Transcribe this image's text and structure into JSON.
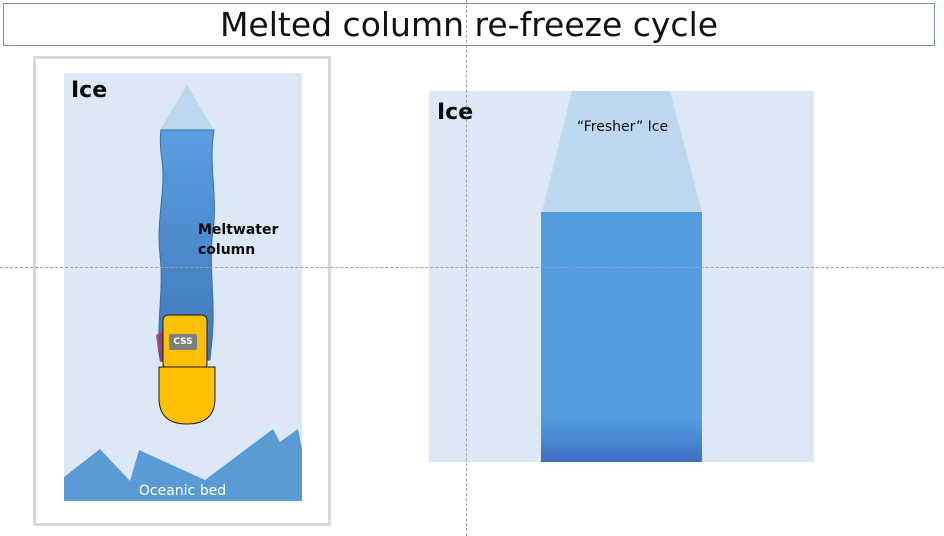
{
  "title": "Melted column re-freeze cycle",
  "left_panel": {
    "ice_label": "Ice",
    "meltwater_line1": "Meltwater",
    "meltwater_line2": "column",
    "probe_label": "CSS",
    "bed_label": "Oceanic bed"
  },
  "right_panel": {
    "ice_label": "Ice",
    "fresher_label": "“Fresher” Ice"
  },
  "colors": {
    "ice": "#dce8f5",
    "fresh_ice": "#bdd7ee",
    "meltwater": "#4f96dd",
    "meltwater_dark": "#3f78b8",
    "probe_body": "#ffc000",
    "probe_label_bg": "#7f7f7f",
    "oceanic_bed": "#5b9bd5",
    "title_border": "#6f8fc9"
  }
}
